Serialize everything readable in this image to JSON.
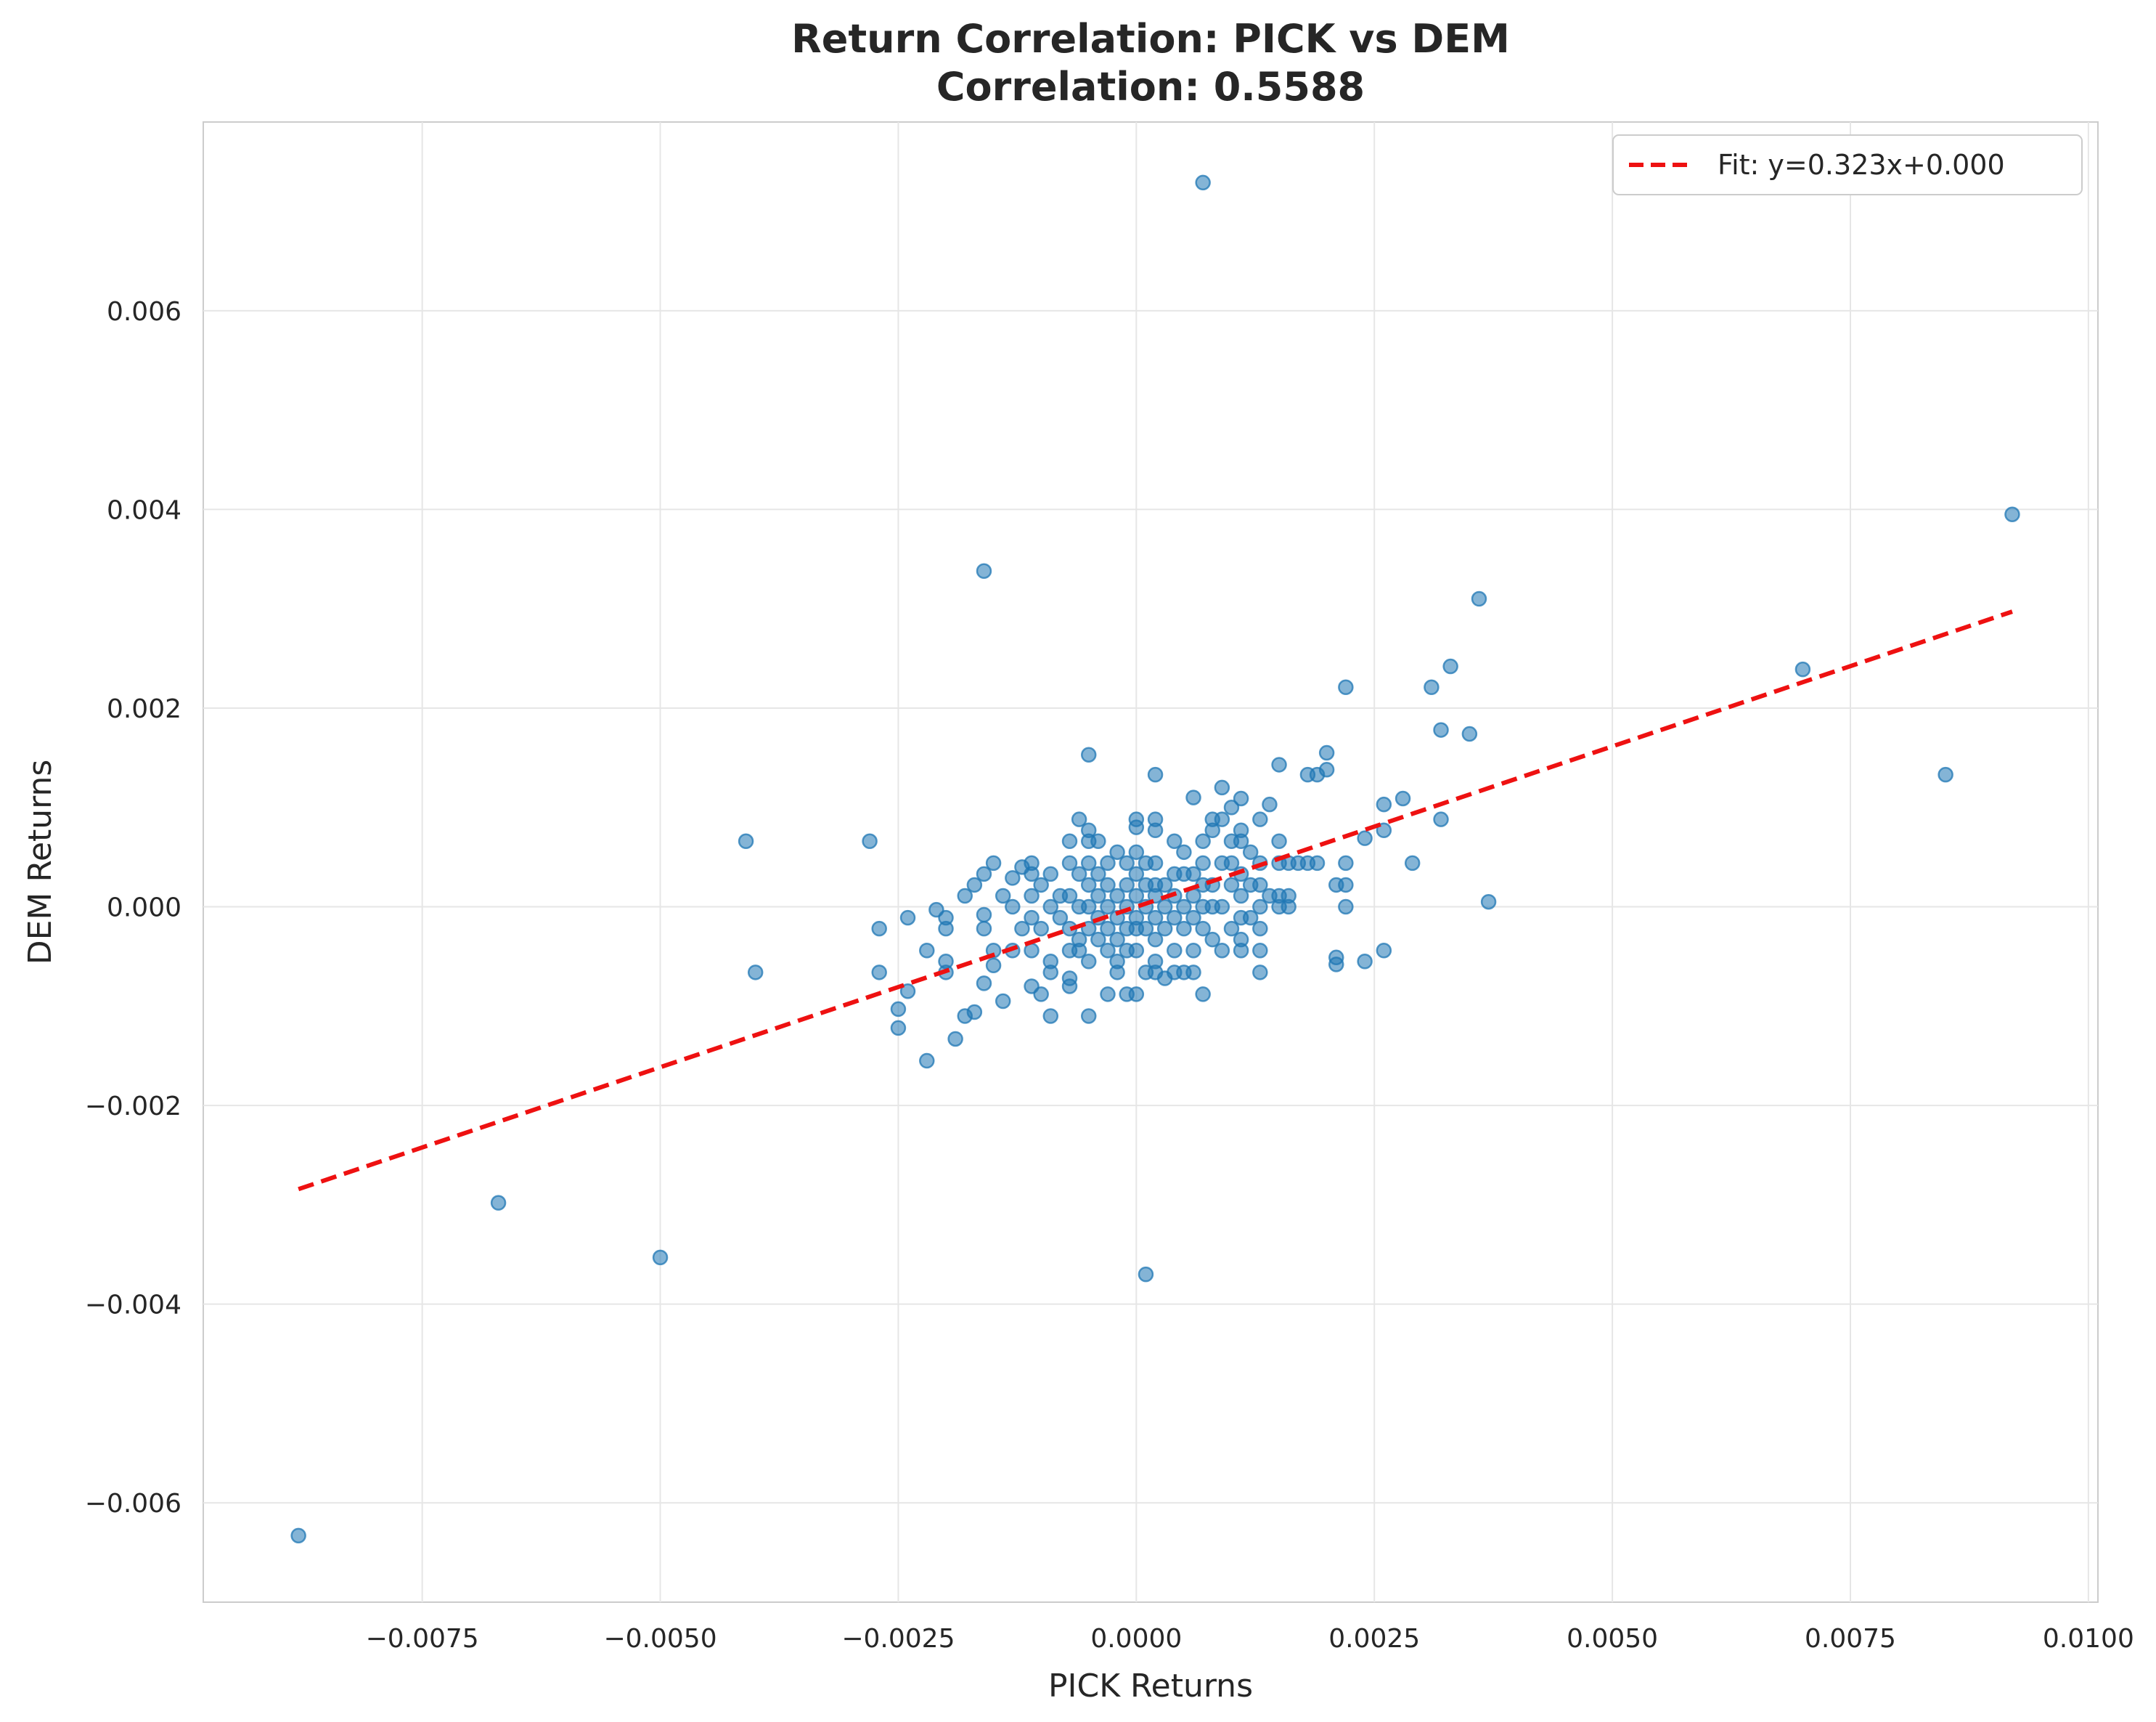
{
  "chart_data": {
    "type": "scatter",
    "title_line1": "Return Correlation: PICK vs DEM",
    "title_line2": "Correlation: 0.5588",
    "xlabel": "PICK Returns",
    "ylabel": "DEM Returns",
    "xlim": [
      -0.0098,
      0.0101
    ],
    "ylim": [
      -0.007,
      0.0079
    ],
    "xticks": [
      -0.0075,
      -0.005,
      -0.0025,
      0.0,
      0.0025,
      0.005,
      0.0075,
      0.01
    ],
    "xtick_labels": [
      "−0.0075",
      "−0.0050",
      "−0.0025",
      "0.0000",
      "0.0025",
      "0.0050",
      "0.0075",
      "0.0100"
    ],
    "yticks": [
      -0.006,
      -0.004,
      -0.002,
      0.0,
      0.002,
      0.004,
      0.006
    ],
    "ytick_labels": [
      "−0.006",
      "−0.004",
      "−0.002",
      "0.000",
      "0.002",
      "0.004",
      "0.006"
    ],
    "grid": true,
    "legend_position": "top-right",
    "point_color": "#1f77b4",
    "fit_color": "#ee1111",
    "fit": {
      "label": "Fit: y=0.323x+0.000",
      "slope": 0.323,
      "intercept": 0.0,
      "x_range": [
        -0.0088,
        0.0092
      ]
    },
    "points": [
      [
        -0.0088,
        -0.00633
      ],
      [
        -0.0067,
        -0.00298
      ],
      [
        -0.005,
        -0.00353
      ],
      [
        -0.0041,
        0.00066
      ],
      [
        -0.004,
        -0.00066
      ],
      [
        -0.0028,
        0.00066
      ],
      [
        -0.0016,
        0.00338
      ],
      [
        0.0007,
        0.00729
      ],
      [
        0.0092,
        0.00395
      ],
      [
        0.0085,
        0.00133
      ],
      [
        0.007,
        0.00239
      ],
      [
        0.0036,
        0.0031
      ],
      [
        0.0033,
        0.00242
      ],
      [
        0.0031,
        0.00221
      ],
      [
        0.0032,
        0.00178
      ],
      [
        0.0035,
        0.00174
      ],
      [
        0.0022,
        0.00221
      ],
      [
        0.0037,
        5e-05
      ],
      [
        0.0032,
        0.00088
      ],
      [
        0.0028,
        0.00109
      ],
      [
        0.0029,
        0.00044
      ],
      [
        0.0026,
        0.00103
      ],
      [
        0.0026,
        0.00077
      ],
      [
        0.0024,
        0.00069
      ],
      [
        0.0026,
        -0.00044
      ],
      [
        0.0024,
        -0.00055
      ],
      [
        0.0021,
        -0.00058
      ],
      [
        0.0021,
        -0.00051
      ],
      [
        0.002,
        0.00155
      ],
      [
        0.002,
        0.00138
      ],
      [
        0.0015,
        0.00143
      ],
      [
        0.0018,
        0.00133
      ],
      [
        0.0019,
        0.00133
      ],
      [
        0.0022,
        0.00022
      ],
      [
        0.0022,
        0.00044
      ],
      [
        0.0022,
        0.0
      ],
      [
        0.0021,
        0.00022
      ],
      [
        0.0018,
        0.00044
      ],
      [
        0.0019,
        0.00044
      ],
      [
        0.0017,
        0.00044
      ],
      [
        0.0014,
        0.00103
      ],
      [
        0.0011,
        0.00109
      ],
      [
        0.0009,
        0.0012
      ],
      [
        0.0006,
        0.0011
      ],
      [
        0.0002,
        0.00133
      ],
      [
        -0.0005,
        0.00153
      ],
      [
        0.0001,
        -0.0037
      ],
      [
        -0.0027,
        -0.00022
      ],
      [
        -0.0027,
        -0.00066
      ],
      [
        -0.0025,
        -0.00103
      ],
      [
        -0.0025,
        -0.00122
      ],
      [
        -0.0024,
        -0.00085
      ],
      [
        -0.0024,
        -0.00011
      ],
      [
        -0.0022,
        -0.00044
      ],
      [
        -0.0022,
        -0.00155
      ],
      [
        -0.0021,
        -3e-05
      ],
      [
        -0.002,
        -0.00011
      ],
      [
        -0.002,
        -0.00022
      ],
      [
        -0.002,
        -0.00055
      ],
      [
        -0.002,
        -0.00066
      ],
      [
        -0.0019,
        -0.00133
      ],
      [
        -0.0018,
        0.00011
      ],
      [
        -0.0018,
        -0.0011
      ],
      [
        -0.0017,
        0.00022
      ],
      [
        -0.0017,
        -0.00106
      ],
      [
        -0.0016,
        0.00033
      ],
      [
        -0.0016,
        -8e-05
      ],
      [
        -0.0016,
        -0.00022
      ],
      [
        -0.0016,
        -0.00077
      ],
      [
        -0.0015,
        0.00044
      ],
      [
        -0.0015,
        -0.00044
      ],
      [
        -0.0015,
        -0.00059
      ],
      [
        -0.0014,
        -0.00095
      ],
      [
        -0.0014,
        0.00011
      ],
      [
        -0.0013,
        0.00029
      ],
      [
        -0.0013,
        0.0
      ],
      [
        -0.0013,
        -0.00044
      ],
      [
        -0.0012,
        0.0004
      ],
      [
        -0.0012,
        -0.00022
      ],
      [
        -0.0011,
        0.00044
      ],
      [
        -0.0011,
        0.00033
      ],
      [
        -0.0011,
        0.00011
      ],
      [
        -0.0011,
        -0.00011
      ],
      [
        -0.0011,
        -0.00044
      ],
      [
        -0.0011,
        -0.0008
      ],
      [
        -0.001,
        0.00022
      ],
      [
        -0.001,
        -0.00022
      ],
      [
        -0.001,
        -0.00088
      ],
      [
        -0.0009,
        0.00033
      ],
      [
        -0.0009,
        0.0
      ],
      [
        -0.0009,
        -0.00055
      ],
      [
        -0.0009,
        -0.00066
      ],
      [
        -0.0009,
        -0.0011
      ],
      [
        -0.0008,
        0.00011
      ],
      [
        -0.0008,
        -0.00011
      ],
      [
        -0.0007,
        0.00066
      ],
      [
        -0.0007,
        0.00044
      ],
      [
        -0.0007,
        0.00011
      ],
      [
        -0.0007,
        -0.00022
      ],
      [
        -0.0007,
        -0.00044
      ],
      [
        -0.0007,
        -0.00072
      ],
      [
        -0.0007,
        -0.0008
      ],
      [
        -0.0006,
        0.00088
      ],
      [
        -0.0006,
        0.00033
      ],
      [
        -0.0006,
        0.0
      ],
      [
        -0.0006,
        -0.00033
      ],
      [
        -0.0006,
        -0.00044
      ],
      [
        -0.0005,
        0.00077
      ],
      [
        -0.0005,
        0.00066
      ],
      [
        -0.0005,
        0.00044
      ],
      [
        -0.0005,
        0.00022
      ],
      [
        -0.0005,
        0.0
      ],
      [
        -0.0005,
        -0.00022
      ],
      [
        -0.0005,
        -0.00055
      ],
      [
        -0.0005,
        -0.0011
      ],
      [
        -0.0004,
        0.00066
      ],
      [
        -0.0004,
        0.00033
      ],
      [
        -0.0004,
        0.00011
      ],
      [
        -0.0004,
        -0.00011
      ],
      [
        -0.0004,
        -0.00033
      ],
      [
        -0.0003,
        0.00044
      ],
      [
        -0.0003,
        0.00022
      ],
      [
        -0.0003,
        0.0
      ],
      [
        -0.0003,
        -0.00022
      ],
      [
        -0.0003,
        -0.00044
      ],
      [
        -0.0003,
        -0.00088
      ],
      [
        -0.0002,
        0.00055
      ],
      [
        -0.0002,
        0.00011
      ],
      [
        -0.0002,
        -0.00011
      ],
      [
        -0.0002,
        -0.00033
      ],
      [
        -0.0002,
        -0.00055
      ],
      [
        -0.0002,
        -0.00066
      ],
      [
        -0.0001,
        0.00044
      ],
      [
        -0.0001,
        0.00022
      ],
      [
        -0.0001,
        0.0
      ],
      [
        -0.0001,
        -0.00022
      ],
      [
        -0.0001,
        -0.00044
      ],
      [
        -0.0001,
        -0.00088
      ],
      [
        0.0,
        0.00088
      ],
      [
        0.0,
        0.0008
      ],
      [
        0.0,
        0.00055
      ],
      [
        0.0,
        0.00033
      ],
      [
        0.0,
        0.00011
      ],
      [
        0.0,
        -0.00011
      ],
      [
        0.0,
        -0.00022
      ],
      [
        0.0,
        -0.00044
      ],
      [
        0.0,
        -0.00088
      ],
      [
        0.0001,
        0.00044
      ],
      [
        0.0001,
        0.00022
      ],
      [
        0.0001,
        0.0
      ],
      [
        0.0001,
        -0.00022
      ],
      [
        0.0001,
        -0.00066
      ],
      [
        0.0002,
        0.00088
      ],
      [
        0.0002,
        0.00077
      ],
      [
        0.0002,
        0.00044
      ],
      [
        0.0002,
        0.00022
      ],
      [
        0.0002,
        0.00011
      ],
      [
        0.0002,
        -0.00011
      ],
      [
        0.0002,
        -0.00033
      ],
      [
        0.0002,
        -0.00055
      ],
      [
        0.0002,
        -0.00066
      ],
      [
        0.0003,
        0.00022
      ],
      [
        0.0003,
        0.0
      ],
      [
        0.0003,
        -0.00022
      ],
      [
        0.0003,
        -0.00072
      ],
      [
        0.0004,
        0.00066
      ],
      [
        0.0004,
        0.00033
      ],
      [
        0.0004,
        0.00011
      ],
      [
        0.0004,
        -0.00011
      ],
      [
        0.0004,
        -0.00044
      ],
      [
        0.0004,
        -0.00066
      ],
      [
        0.0005,
        0.00055
      ],
      [
        0.0005,
        0.00033
      ],
      [
        0.0005,
        0.0
      ],
      [
        0.0005,
        -0.00022
      ],
      [
        0.0005,
        -0.00066
      ],
      [
        0.0006,
        0.00033
      ],
      [
        0.0006,
        0.00011
      ],
      [
        0.0006,
        -0.00011
      ],
      [
        0.0006,
        -0.00044
      ],
      [
        0.0006,
        -0.00066
      ],
      [
        0.0007,
        0.00066
      ],
      [
        0.0007,
        0.00044
      ],
      [
        0.0007,
        0.00022
      ],
      [
        0.0007,
        0.0
      ],
      [
        0.0007,
        -0.00022
      ],
      [
        0.0007,
        -0.00088
      ],
      [
        0.0008,
        0.00088
      ],
      [
        0.0008,
        0.00077
      ],
      [
        0.0008,
        0.00022
      ],
      [
        0.0008,
        0.0
      ],
      [
        0.0008,
        -0.00033
      ],
      [
        0.0009,
        0.00088
      ],
      [
        0.0009,
        0.00044
      ],
      [
        0.0009,
        0.0
      ],
      [
        0.0009,
        -0.00044
      ],
      [
        0.001,
        0.001
      ],
      [
        0.001,
        0.00066
      ],
      [
        0.001,
        0.00044
      ],
      [
        0.001,
        0.00022
      ],
      [
        0.001,
        -0.00022
      ],
      [
        0.0011,
        0.00077
      ],
      [
        0.0011,
        0.00066
      ],
      [
        0.0011,
        0.00033
      ],
      [
        0.0011,
        0.00011
      ],
      [
        0.0011,
        -0.00011
      ],
      [
        0.0011,
        -0.00033
      ],
      [
        0.0011,
        -0.00044
      ],
      [
        0.0012,
        0.00055
      ],
      [
        0.0012,
        0.00022
      ],
      [
        0.0012,
        -0.00011
      ],
      [
        0.0013,
        0.00088
      ],
      [
        0.0013,
        0.00044
      ],
      [
        0.0013,
        0.00022
      ],
      [
        0.0013,
        0.0
      ],
      [
        0.0013,
        -0.00022
      ],
      [
        0.0013,
        -0.00044
      ],
      [
        0.0013,
        -0.00066
      ],
      [
        0.0014,
        0.00011
      ],
      [
        0.0015,
        0.00066
      ],
      [
        0.0015,
        0.00044
      ],
      [
        0.0015,
        0.00011
      ],
      [
        0.0015,
        0.0
      ],
      [
        0.0016,
        0.00011
      ],
      [
        0.0016,
        0.00044
      ],
      [
        0.0016,
        0.0
      ]
    ]
  }
}
